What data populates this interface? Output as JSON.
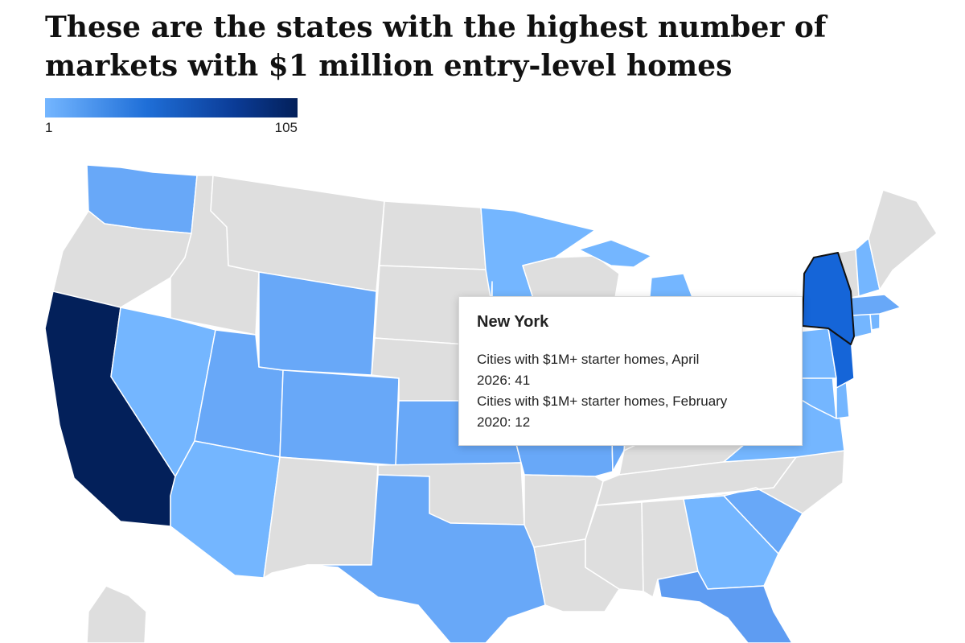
{
  "title": "These are the states with the highest number of markets with $1 million entry-level homes",
  "legend": {
    "min_label": "1",
    "max_label": "105",
    "min": 1,
    "max": 105
  },
  "colors": {
    "no_data": "#dedede",
    "low": "#74b6ff",
    "mid": "#68a8f8",
    "mid2": "#5e9cf2",
    "high": "#3a7de6",
    "strong": "#1565d8",
    "max": "#03205a",
    "border": "#ffffff",
    "highlight": "#111111"
  },
  "tooltip": {
    "state": "New York",
    "line1": "Cities with $1M+ starter homes, April\n2026: 41",
    "line2": "Cities with $1M+ starter homes, February\n2020: 12"
  },
  "states": [
    {
      "name": "Washington",
      "shade": "mid"
    },
    {
      "name": "Oregon",
      "shade": "no_data"
    },
    {
      "name": "California",
      "shade": "max"
    },
    {
      "name": "Idaho",
      "shade": "no_data"
    },
    {
      "name": "Nevada",
      "shade": "low"
    },
    {
      "name": "Utah",
      "shade": "mid"
    },
    {
      "name": "Arizona",
      "shade": "low"
    },
    {
      "name": "Montana",
      "shade": "no_data"
    },
    {
      "name": "Wyoming",
      "shade": "mid"
    },
    {
      "name": "Colorado",
      "shade": "mid"
    },
    {
      "name": "New Mexico",
      "shade": "no_data"
    },
    {
      "name": "North Dakota",
      "shade": "no_data"
    },
    {
      "name": "South Dakota",
      "shade": "no_data"
    },
    {
      "name": "Nebraska",
      "shade": "no_data"
    },
    {
      "name": "Kansas",
      "shade": "mid"
    },
    {
      "name": "Oklahoma",
      "shade": "no_data"
    },
    {
      "name": "Texas",
      "shade": "mid"
    },
    {
      "name": "Minnesota",
      "shade": "low"
    },
    {
      "name": "Iowa",
      "shade": "no_data"
    },
    {
      "name": "Missouri",
      "shade": "mid"
    },
    {
      "name": "Arkansas",
      "shade": "no_data"
    },
    {
      "name": "Louisiana",
      "shade": "no_data"
    },
    {
      "name": "Wisconsin",
      "shade": "no_data"
    },
    {
      "name": "Illinois",
      "shade": "mid"
    },
    {
      "name": "Michigan",
      "shade": "low"
    },
    {
      "name": "Indiana",
      "shade": "no_data"
    },
    {
      "name": "Ohio",
      "shade": "no_data"
    },
    {
      "name": "Kentucky",
      "shade": "no_data"
    },
    {
      "name": "Tennessee",
      "shade": "no_data"
    },
    {
      "name": "Mississippi",
      "shade": "no_data"
    },
    {
      "name": "Alabama",
      "shade": "no_data"
    },
    {
      "name": "Georgia",
      "shade": "low"
    },
    {
      "name": "Florida",
      "shade": "mid2"
    },
    {
      "name": "South Carolina",
      "shade": "mid"
    },
    {
      "name": "North Carolina",
      "shade": "no_data"
    },
    {
      "name": "Virginia",
      "shade": "low"
    },
    {
      "name": "West Virginia",
      "shade": "no_data"
    },
    {
      "name": "Maryland",
      "shade": "low"
    },
    {
      "name": "Delaware",
      "shade": "low"
    },
    {
      "name": "Pennsylvania",
      "shade": "low"
    },
    {
      "name": "New Jersey",
      "shade": "strong"
    },
    {
      "name": "New York",
      "shade": "strong"
    },
    {
      "name": "Connecticut",
      "shade": "low"
    },
    {
      "name": "Rhode Island",
      "shade": "low"
    },
    {
      "name": "Massachusetts",
      "shade": "mid"
    },
    {
      "name": "Vermont",
      "shade": "no_data"
    },
    {
      "name": "New Hampshire",
      "shade": "low"
    },
    {
      "name": "Maine",
      "shade": "no_data"
    },
    {
      "name": "Alaska",
      "shade": "no_data"
    }
  ]
}
